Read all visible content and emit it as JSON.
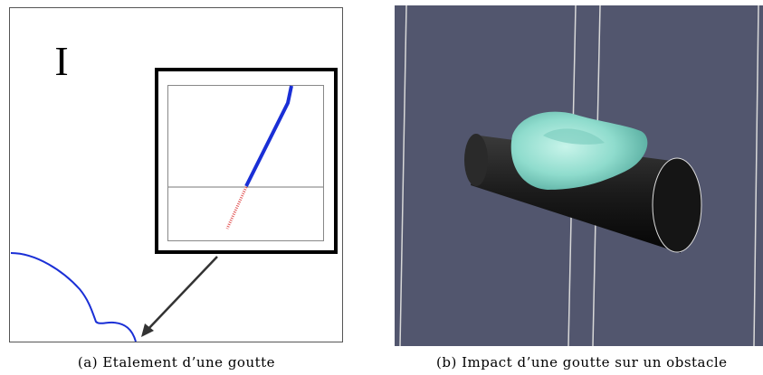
{
  "panel_a": {
    "label": "I",
    "caption": "(a) Etalement d’une goutte"
  },
  "panel_b": {
    "caption": "(b) Impact d’une goutte sur un obstacle"
  }
}
